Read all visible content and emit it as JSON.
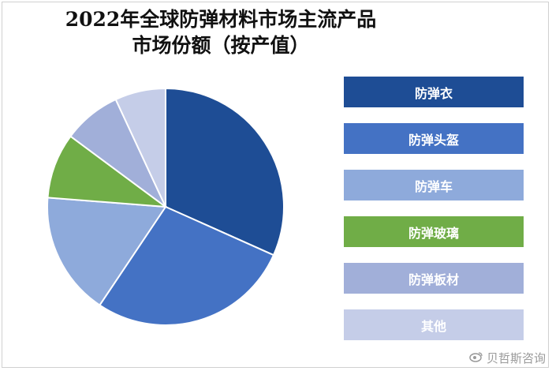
{
  "chart_data": {
    "type": "pie",
    "title_line1": "2022年全球防弹材料市场主流产品",
    "title_line2": "市场份额（按产值）",
    "categories": [
      "防弹衣",
      "防弹头盔",
      "防弹车",
      "防弹玻璃",
      "防弹板材",
      "其他"
    ],
    "values": [
      32,
      28,
      17,
      9,
      8,
      7
    ],
    "colors": [
      "#1e4d95",
      "#4472c4",
      "#8eaadb",
      "#70ad47",
      "#a1afd9",
      "#c5cde8"
    ],
    "legend_position": "right",
    "start_angle_deg": 0,
    "direction": "clockwise"
  },
  "watermark": {
    "text": "贝哲斯咨询",
    "icon": "weibo-icon"
  }
}
